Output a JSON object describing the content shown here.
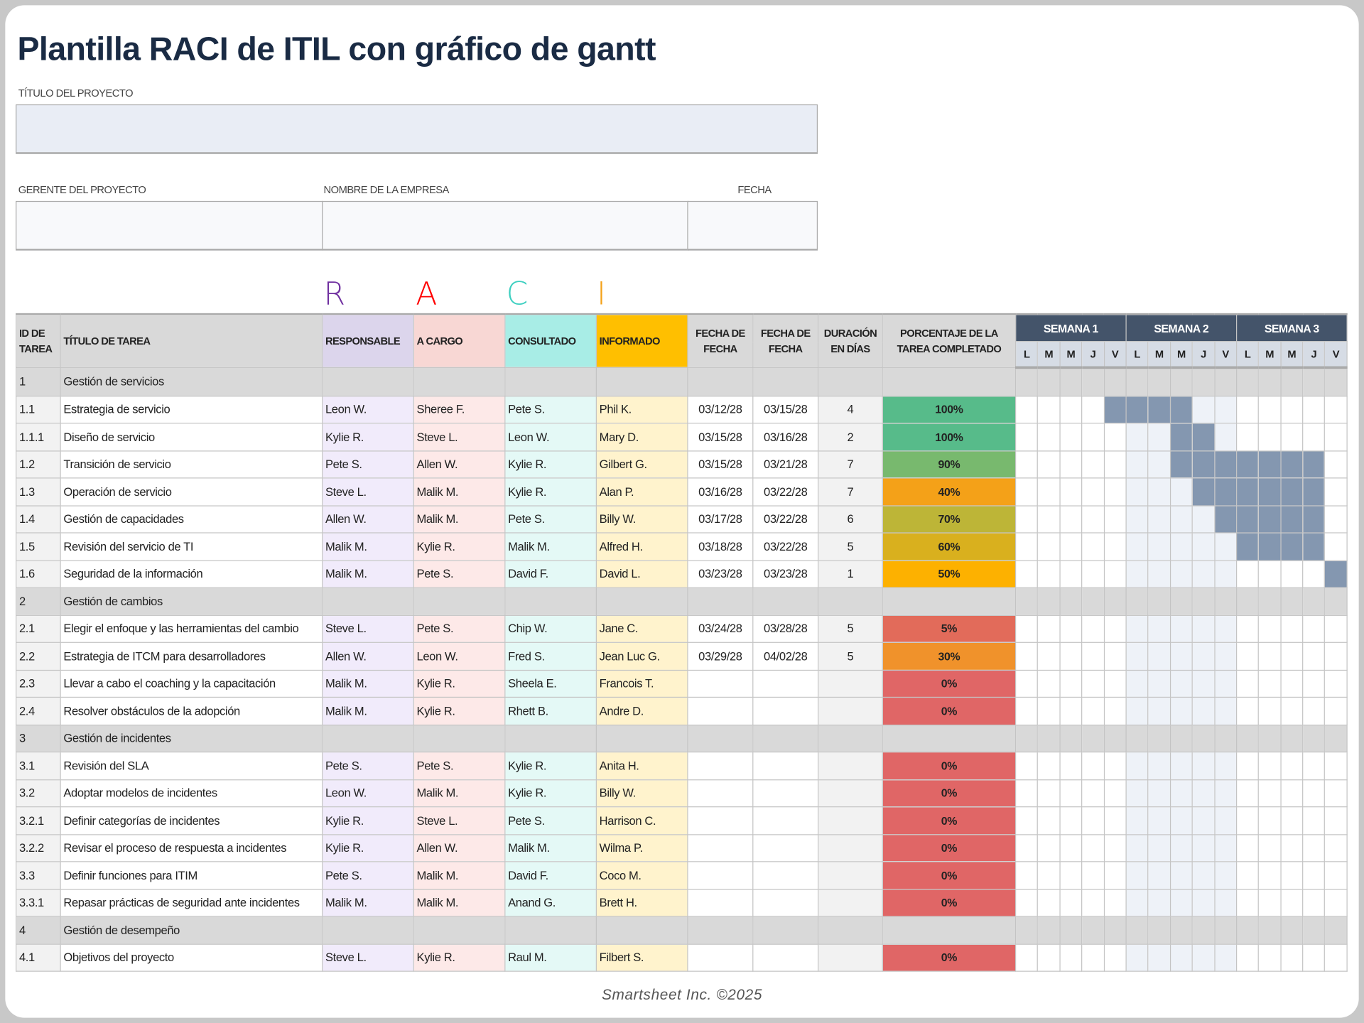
{
  "title": "Plantilla RACI de ITIL con gráfico de gantt",
  "project_title_label": "TÍTULO DEL PROYECTO",
  "project_title_value": "",
  "manager_label": "GERENTE DEL PROYECTO",
  "company_label": "NOMBRE DE LA EMPRESA",
  "date_label": "FECHA",
  "raci_letters": {
    "r": "R",
    "a": "A",
    "c": "C",
    "i": "I"
  },
  "colors": {
    "r": "#7030a0",
    "a": "#ff0000",
    "c": "#3ccfc0",
    "i": "#f4a118",
    "week_header": "#44546a",
    "bar": "#8497b0"
  },
  "columns": {
    "id": "ID DE TAREA",
    "title": "TÍTULO DE TAREA",
    "r": "RESPONSABLE",
    "a": "A CARGO",
    "c": "CONSULTADO",
    "i": "INFORMADO",
    "start": "FECHA DE FECHA",
    "end": "FECHA DE FECHA",
    "dur": "DURACIÓN EN DÍAS",
    "pct": "PORCENTAJE DE LA TAREA COMPLETADO"
  },
  "weeks": [
    "SEMANA 1",
    "SEMANA 2",
    "SEMANA 3"
  ],
  "days": [
    "L",
    "M",
    "M",
    "J",
    "V"
  ],
  "rows": [
    {
      "id": "1",
      "title": "Gestión de servicios",
      "section": true
    },
    {
      "id": "1.1",
      "title": "Estrategia de servicio",
      "r": "Leon W.",
      "a": "Sheree F.",
      "c": "Pete S.",
      "i": "Phil K.",
      "start": "03/12/28",
      "end": "03/15/28",
      "dur": "4",
      "pct": "100%",
      "pct_color": "#57bb8a",
      "bar": [
        4,
        7
      ]
    },
    {
      "id": "1.1.1",
      "title": "Diseño de servicio",
      "r": "Kylie R.",
      "a": "Steve L.",
      "c": "Leon W.",
      "i": "Mary D.",
      "start": "03/15/28",
      "end": "03/16/28",
      "dur": "2",
      "pct": "100%",
      "pct_color": "#57bb8a",
      "bar": [
        7,
        8
      ]
    },
    {
      "id": "1.2",
      "title": "Transición de servicio",
      "r": "Pete S.",
      "a": "Allen W.",
      "c": "Kylie R.",
      "i": "Gilbert G.",
      "start": "03/15/28",
      "end": "03/21/28",
      "dur": "7",
      "pct": "90%",
      "pct_color": "#78b96e",
      "bar": [
        7,
        13
      ]
    },
    {
      "id": "1.3",
      "title": "Operación de servicio",
      "r": "Steve L.",
      "a": "Malik M.",
      "c": "Kylie R.",
      "i": "Alan P.",
      "start": "03/16/28",
      "end": "03/22/28",
      "dur": "7",
      "pct": "40%",
      "pct_color": "#f4a118",
      "bar": [
        8,
        13
      ]
    },
    {
      "id": "1.4",
      "title": "Gestión de capacidades",
      "r": "Allen W.",
      "a": "Malik M.",
      "c": "Pete S.",
      "i": "Billy W.",
      "start": "03/17/28",
      "end": "03/22/28",
      "dur": "6",
      "pct": "70%",
      "pct_color": "#bdb537",
      "bar": [
        9,
        13
      ]
    },
    {
      "id": "1.5",
      "title": "Revisión del servicio de TI",
      "r": "Malik M.",
      "a": "Kylie R.",
      "c": "Malik M.",
      "i": "Alfred H.",
      "start": "03/18/28",
      "end": "03/22/28",
      "dur": "5",
      "pct": "60%",
      "pct_color": "#d9b01e",
      "bar": [
        10,
        13
      ]
    },
    {
      "id": "1.6",
      "title": "Seguridad de la información",
      "r": "Malik M.",
      "a": "Pete S.",
      "c": "David F.",
      "i": "David L.",
      "start": "03/23/28",
      "end": "03/23/28",
      "dur": "1",
      "pct": "50%",
      "pct_color": "#fdb100",
      "bar": [
        14,
        14
      ]
    },
    {
      "id": "2",
      "title": "Gestión de cambios",
      "section": true
    },
    {
      "id": "2.1",
      "title": "Elegir el enfoque y las herramientas del cambio",
      "r": "Steve L.",
      "a": "Pete S.",
      "c": "Chip W.",
      "i": "Jane C.",
      "start": "03/24/28",
      "end": "03/28/28",
      "dur": "5",
      "pct": "5%",
      "pct_color": "#e26b5a"
    },
    {
      "id": "2.2",
      "title": "Estrategia de ITCM para desarrolladores",
      "r": "Allen W.",
      "a": "Leon W.",
      "c": "Fred S.",
      "i": "Jean Luc G.",
      "start": "03/29/28",
      "end": "04/02/28",
      "dur": "5",
      "pct": "30%",
      "pct_color": "#f0922b"
    },
    {
      "id": "2.3",
      "title": "Llevar a cabo el coaching y la capacitación",
      "r": "Malik M.",
      "a": "Kylie R.",
      "c": "Sheela E.",
      "i": "Francois T.",
      "start": "",
      "end": "",
      "dur": "",
      "pct": "0%",
      "pct_color": "#e06666"
    },
    {
      "id": "2.4",
      "title": "Resolver obstáculos de la adopción",
      "r": "Malik M.",
      "a": "Kylie R.",
      "c": "Rhett B.",
      "i": "Andre D.",
      "start": "",
      "end": "",
      "dur": "",
      "pct": "0%",
      "pct_color": "#e06666"
    },
    {
      "id": "3",
      "title": "Gestión de incidentes",
      "section": true
    },
    {
      "id": "3.1",
      "title": "Revisión del SLA",
      "r": "Pete S.",
      "a": "Pete S.",
      "c": "Kylie R.",
      "i": "Anita H.",
      "start": "",
      "end": "",
      "dur": "",
      "pct": "0%",
      "pct_color": "#e06666"
    },
    {
      "id": "3.2",
      "title": "Adoptar modelos de incidentes",
      "r": "Leon W.",
      "a": "Malik M.",
      "c": "Kylie R.",
      "i": "Billy W.",
      "start": "",
      "end": "",
      "dur": "",
      "pct": "0%",
      "pct_color": "#e06666"
    },
    {
      "id": "3.2.1",
      "title": "Definir categorías de incidentes",
      "r": "Kylie R.",
      "a": "Steve L.",
      "c": "Pete S.",
      "i": "Harrison C.",
      "start": "",
      "end": "",
      "dur": "",
      "pct": "0%",
      "pct_color": "#e06666"
    },
    {
      "id": "3.2.2",
      "title": "Revisar el proceso de respuesta a incidentes",
      "r": "Kylie R.",
      "a": "Allen W.",
      "c": "Malik M.",
      "i": "Wilma P.",
      "start": "",
      "end": "",
      "dur": "",
      "pct": "0%",
      "pct_color": "#e06666"
    },
    {
      "id": "3.3",
      "title": "Definir funciones para ITIM",
      "r": "Pete S.",
      "a": "Malik M.",
      "c": "David F.",
      "i": "Coco M.",
      "start": "",
      "end": "",
      "dur": "",
      "pct": "0%",
      "pct_color": "#e06666"
    },
    {
      "id": "3.3.1",
      "title": "Repasar prácticas de seguridad ante incidentes",
      "r": "Malik M.",
      "a": "Malik M.",
      "c": "Anand G.",
      "i": "Brett H.",
      "start": "",
      "end": "",
      "dur": "",
      "pct": "0%",
      "pct_color": "#e06666"
    },
    {
      "id": "4",
      "title": "Gestión de desempeño",
      "section": true
    },
    {
      "id": "4.1",
      "title": "Objetivos del proyecto",
      "r": "Steve L.",
      "a": "Kylie R.",
      "c": "Raul M.",
      "i": "Filbert S.",
      "start": "",
      "end": "",
      "dur": "",
      "pct": "0%",
      "pct_color": "#e06666"
    }
  ],
  "footer": "Smartsheet Inc. ©2025"
}
